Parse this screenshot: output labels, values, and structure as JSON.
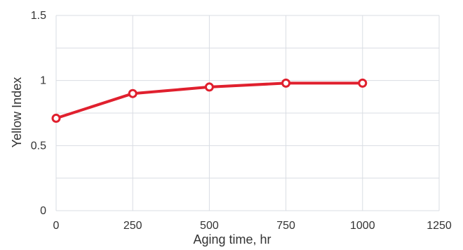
{
  "chart_data": {
    "type": "line",
    "title": "",
    "xlabel": "Aging time, hr",
    "ylabel": "Yellow Index",
    "xlim": [
      0,
      1250
    ],
    "ylim": [
      0,
      1.5
    ],
    "x_ticks": [
      0,
      250,
      500,
      750,
      1000,
      1250
    ],
    "y_ticks": [
      0,
      0.5,
      1,
      1.5
    ],
    "x_tick_labels": [
      "0",
      "250",
      "500",
      "750",
      "1000",
      "1250"
    ],
    "y_tick_labels": [
      "0",
      "0.5",
      "1",
      "1.5"
    ],
    "grid": true,
    "series": [
      {
        "x": [
          0,
          250,
          500,
          750,
          1000
        ],
        "y": [
          0.71,
          0.9,
          0.95,
          0.98,
          0.98
        ],
        "color": "#e0202e",
        "marker": "open-circle"
      }
    ]
  }
}
